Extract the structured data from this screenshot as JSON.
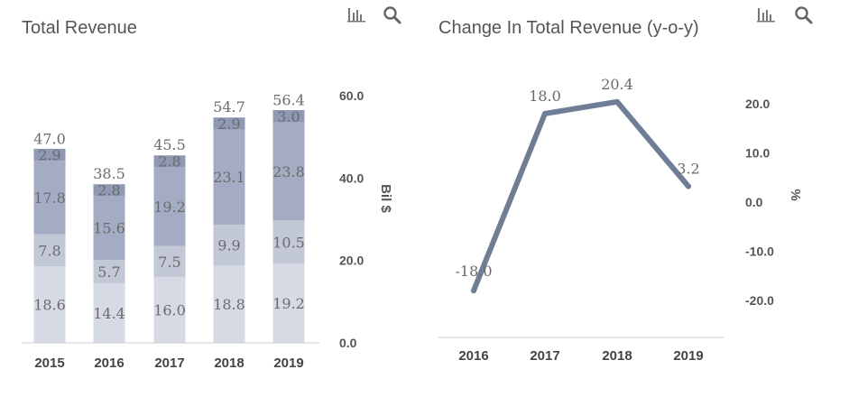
{
  "panels": {
    "revenue": {
      "title": "Total Revenue",
      "bar_icon": "bar-chart-icon",
      "search_icon": "search-icon"
    },
    "change": {
      "title": "Change In Total Revenue (y-o-y)",
      "bar_icon": "bar-chart-icon",
      "search_icon": "search-icon"
    }
  },
  "colors": {
    "segment1": "#d6dae4",
    "segment2": "#c2c8d6",
    "segment3": "#a4acc4",
    "segment4": "#8f99b3",
    "line": "#6f7d96",
    "axis": "#cccccc"
  },
  "chart_data": [
    {
      "type": "bar",
      "stacked": true,
      "categories": [
        "2015",
        "2016",
        "2017",
        "2018",
        "2019"
      ],
      "series": [
        {
          "values": [
            18.6,
            14.4,
            16.0,
            18.8,
            19.2
          ]
        },
        {
          "values": [
            7.8,
            5.7,
            7.5,
            9.9,
            10.5
          ]
        },
        {
          "values": [
            17.8,
            15.6,
            19.2,
            23.1,
            23.8
          ]
        },
        {
          "values": [
            2.9,
            2.8,
            2.8,
            2.9,
            3.0
          ]
        }
      ],
      "totals": [
        47.0,
        38.5,
        45.5,
        54.7,
        56.4
      ],
      "title": "Total Revenue",
      "ylabel": "Bil $",
      "ylim": [
        0,
        60
      ],
      "yticks": [
        0.0,
        20.0,
        40.0,
        60.0
      ],
      "ytick_labels": [
        "0.0",
        "20.0",
        "40.0",
        "60.0"
      ],
      "y_axis_side": "right",
      "grid": false
    },
    {
      "type": "line",
      "x": [
        "2016",
        "2017",
        "2018",
        "2019"
      ],
      "series": [
        {
          "values": [
            -18.0,
            18.0,
            20.4,
            3.2
          ],
          "labels": [
            "-18.0",
            "18.0",
            "20.4",
            "3.2"
          ]
        }
      ],
      "title": "Change In Total Revenue (y-o-y)",
      "ylabel": "%",
      "ylim": [
        -28,
        22
      ],
      "yticks": [
        -20.0,
        -10.0,
        0.0,
        10.0,
        20.0
      ],
      "ytick_labels": [
        "-20.0",
        "-10.0",
        "0.0",
        "10.0",
        "20.0"
      ],
      "y_axis_side": "right",
      "grid": false
    }
  ]
}
